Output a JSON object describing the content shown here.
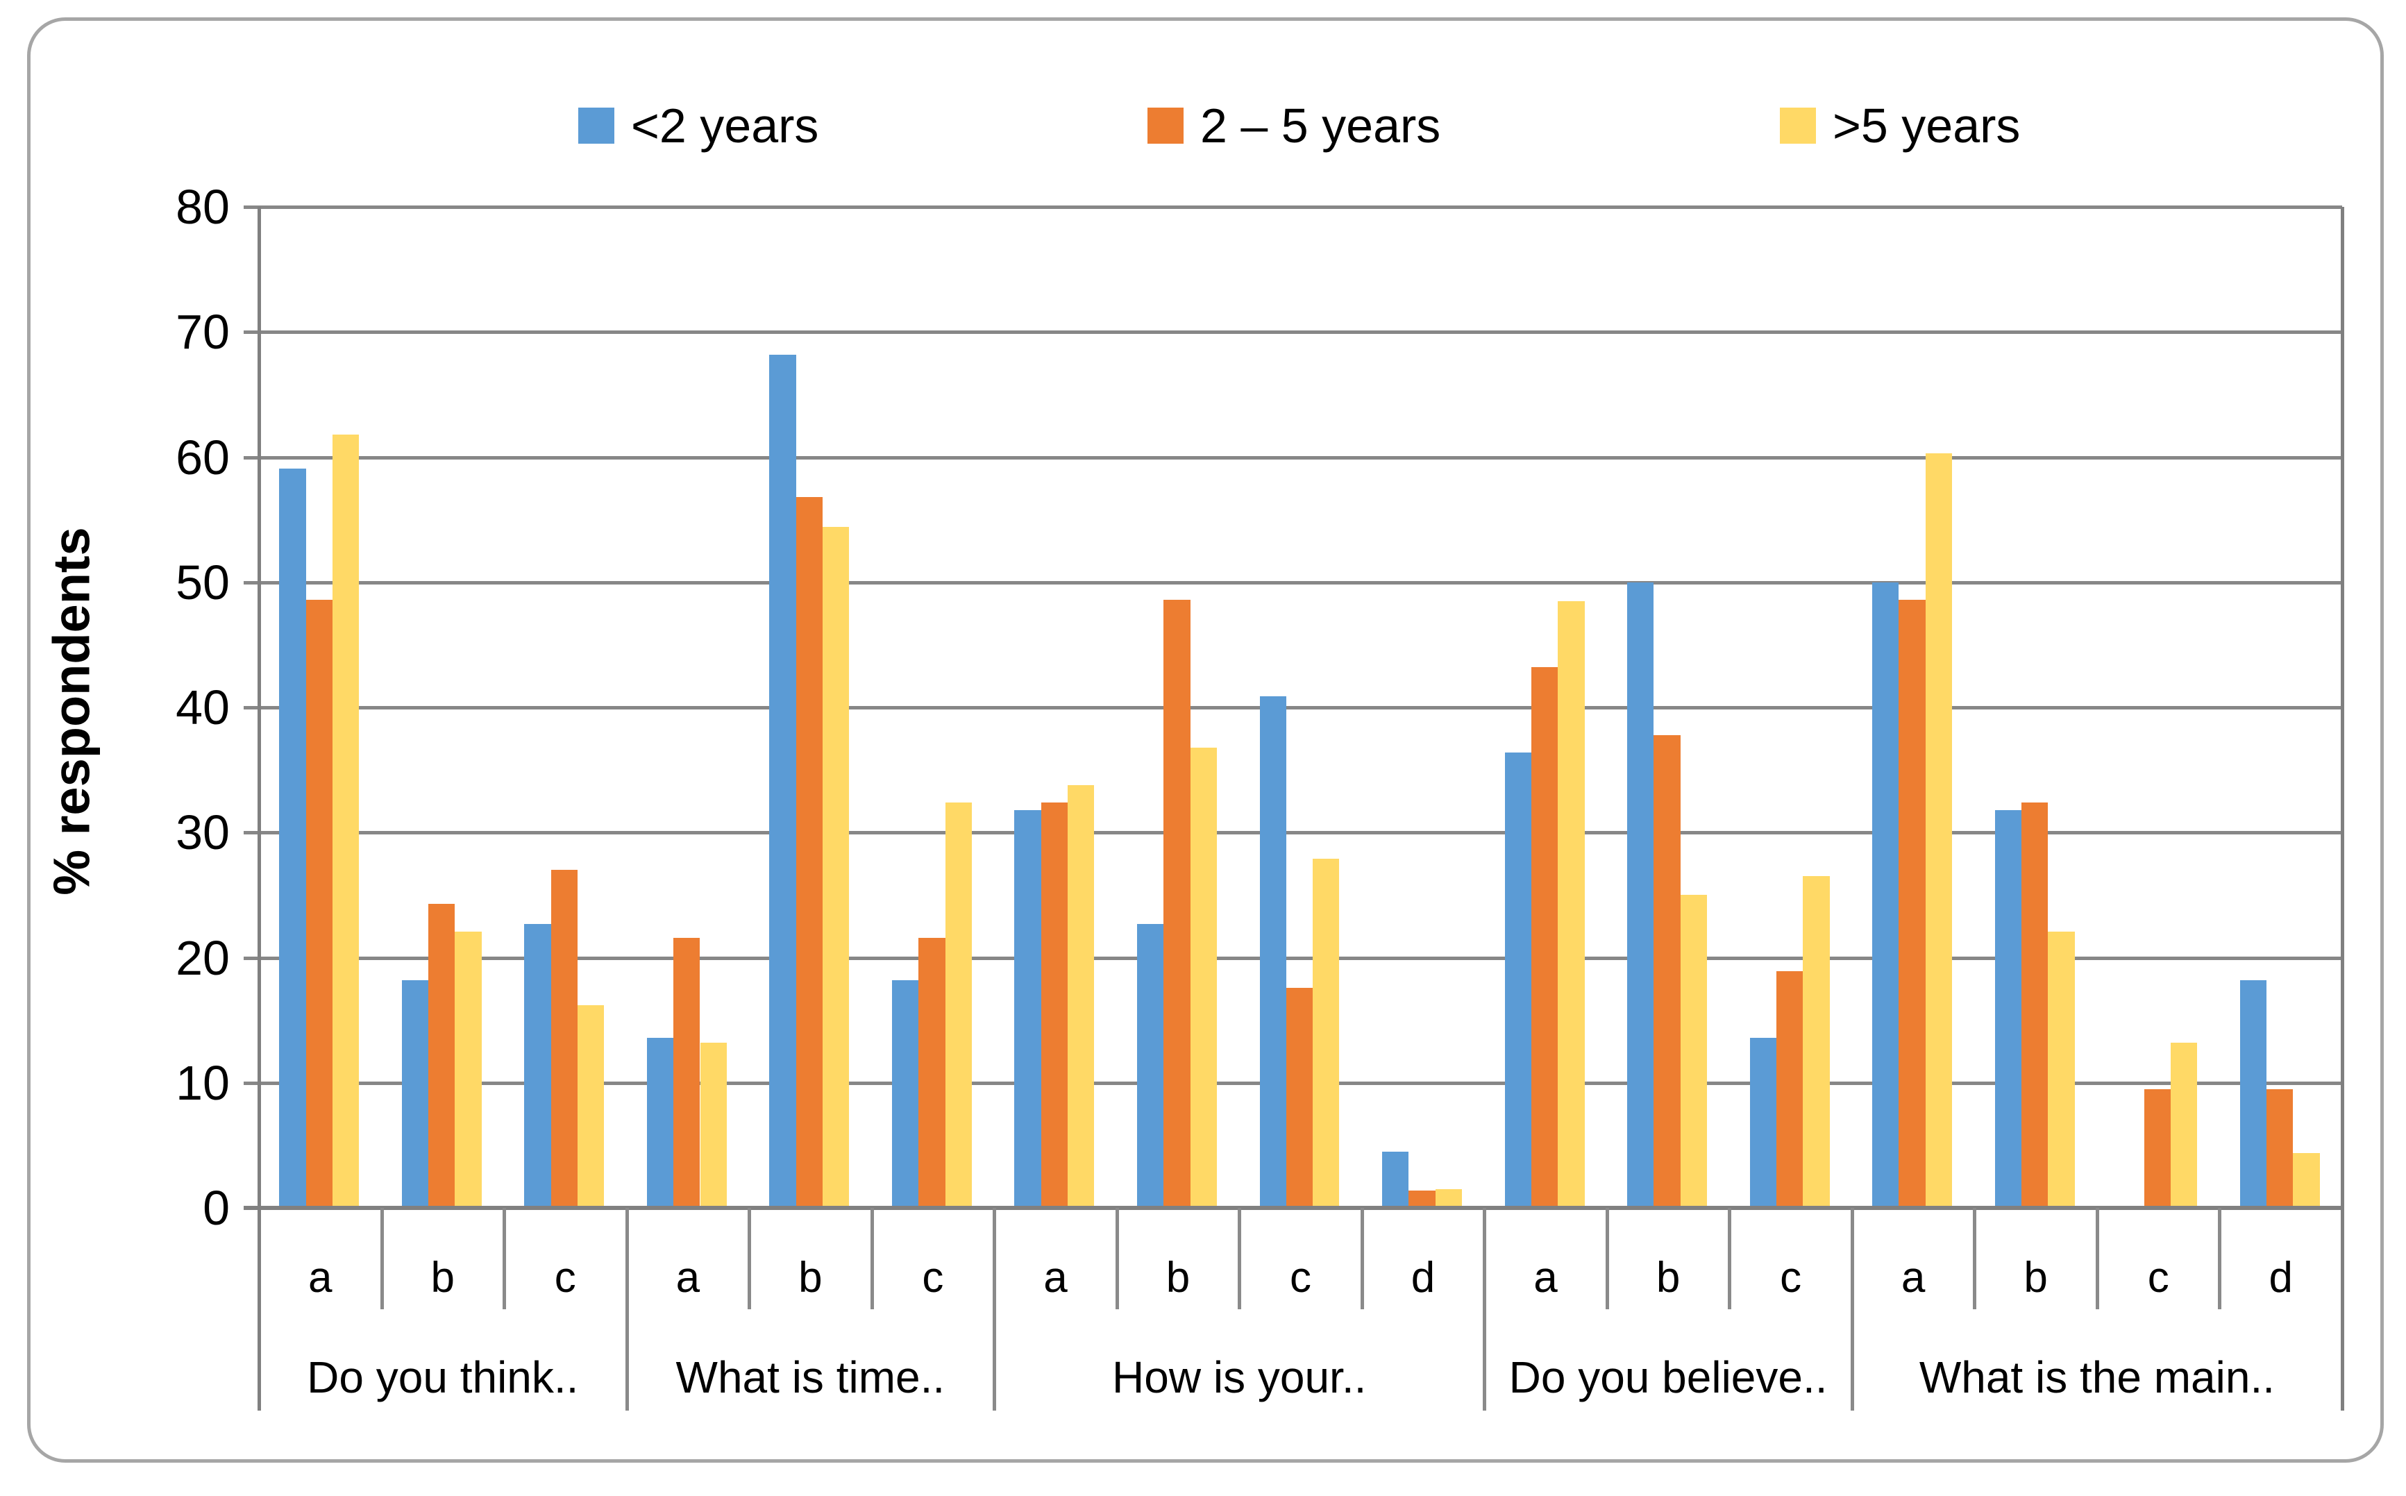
{
  "colors": {
    "series_blue": "#5B9BD5",
    "series_orange": "#ED7D31",
    "series_yellow": "#FFD966",
    "gridline": "#878787",
    "axis": "#808080",
    "frame_border": "#A6A6A6",
    "text": "#000000"
  },
  "chart_data": {
    "type": "bar",
    "title": "",
    "xlabel": "",
    "ylabel": "% respondents",
    "ylim": [
      0,
      80
    ],
    "ytick_step": 10,
    "yticks": [
      0,
      10,
      20,
      30,
      40,
      50,
      60,
      70,
      80
    ],
    "grid": "horizontal",
    "legend_position": "top",
    "groups": [
      {
        "label": "Do you think..",
        "categories": [
          "a",
          "b",
          "c"
        ]
      },
      {
        "label": "What is time..",
        "categories": [
          "a",
          "b",
          "c"
        ]
      },
      {
        "label": "How is your..",
        "categories": [
          "a",
          "b",
          "c",
          "d"
        ]
      },
      {
        "label": "Do you believe..",
        "categories": [
          "a",
          "b",
          "c"
        ]
      },
      {
        "label": "What is the main..",
        "categories": [
          "a",
          "b",
          "c",
          "d"
        ]
      }
    ],
    "series": [
      {
        "name": "<2 years",
        "color": "#5B9BD5",
        "values": [
          59.1,
          18.2,
          22.7,
          13.6,
          68.2,
          18.2,
          31.8,
          22.7,
          40.9,
          4.5,
          36.4,
          50.0,
          13.6,
          50.0,
          31.8,
          0,
          18.2
        ]
      },
      {
        "name": "2 – 5 years",
        "color": "#ED7D31",
        "values": [
          48.6,
          24.3,
          27.0,
          21.6,
          56.8,
          21.6,
          32.4,
          48.6,
          17.6,
          1.4,
          43.2,
          37.8,
          18.9,
          48.6,
          32.4,
          9.5,
          9.5
        ]
      },
      {
        "name": ">5 years",
        "color": "#FFD966",
        "values": [
          61.8,
          22.1,
          16.2,
          13.2,
          54.4,
          32.4,
          33.8,
          36.8,
          27.9,
          1.5,
          48.5,
          25.0,
          26.5,
          60.3,
          22.1,
          13.2,
          4.4
        ]
      }
    ]
  }
}
